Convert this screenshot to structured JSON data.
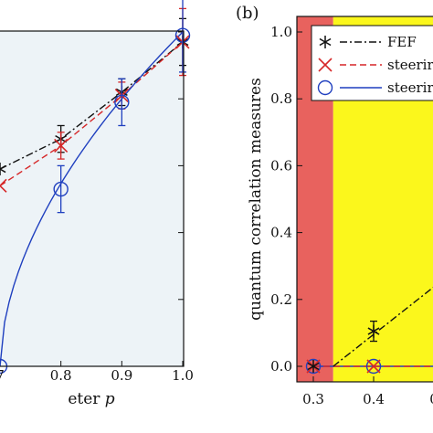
{
  "chart_data": [
    {
      "type": "line",
      "panel": "left (partially visible)",
      "xlabel": "eter p",
      "xlim": [
        0.7,
        1.0
      ],
      "ylim": [
        0.0,
        1.0
      ],
      "x_ticks": [
        "7",
        "0.8",
        "0.9",
        "1.0"
      ],
      "background": "#edf3f7",
      "series": [
        {
          "key": "fef",
          "marker": "asterisk",
          "color": "#111111",
          "x": [
            0.7,
            0.8,
            0.9,
            1.0
          ],
          "y": [
            0.59,
            0.68,
            0.82,
            0.97
          ],
          "err": [
            null,
            0.04,
            0.04,
            0.07
          ]
        },
        {
          "key": "steer1",
          "marker": "x",
          "color": "#d62728",
          "x": [
            0.7,
            0.8,
            0.9,
            1.0
          ],
          "y": [
            0.54,
            0.66,
            0.81,
            0.97
          ],
          "err": [
            null,
            0.04,
            0.04,
            0.1
          ]
        },
        {
          "key": "steer2",
          "marker": "circle",
          "color": "#1f3fbf",
          "x": [
            0.7,
            0.8,
            0.9,
            1.0
          ],
          "y": [
            0.0,
            0.53,
            0.79,
            0.99
          ],
          "err": [
            null,
            0.07,
            0.07,
            0.11
          ]
        }
      ]
    },
    {
      "type": "line",
      "panel_label": "(b)",
      "ylabel": "quantum correlation measures",
      "xlim": [
        0.28,
        0.5
      ],
      "ylim": [
        -0.05,
        1.05
      ],
      "y_ticks": [
        "0.0",
        "0.2",
        "0.4",
        "0.6",
        "0.8",
        "1.0"
      ],
      "x_ticks": [
        "0.3",
        "0.4",
        "0"
      ],
      "regions": [
        {
          "from": 0.28,
          "to": 0.333,
          "color": "#e8625e"
        },
        {
          "from": 0.333,
          "to": 0.5,
          "color": "#fbf71c"
        }
      ],
      "legend": {
        "position": "top-right",
        "entries": [
          "FEF",
          "steerir",
          "steerir"
        ]
      },
      "series": [
        {
          "key": "fef",
          "name": "FEF",
          "marker": "asterisk",
          "color": "#111111",
          "x": [
            0.3,
            0.4
          ],
          "y": [
            0.0,
            0.105
          ],
          "err": [
            null,
            0.03
          ]
        },
        {
          "key": "steer1",
          "name": "steerir",
          "marker": "x",
          "color": "#d62728",
          "x": [
            0.3,
            0.4
          ],
          "y": [
            0.0,
            0.0
          ]
        },
        {
          "key": "steer2",
          "name": "steerir",
          "marker": "circle",
          "color": "#1f3fbf",
          "x": [
            0.3,
            0.4
          ],
          "y": [
            0.0,
            0.0
          ]
        }
      ]
    }
  ]
}
